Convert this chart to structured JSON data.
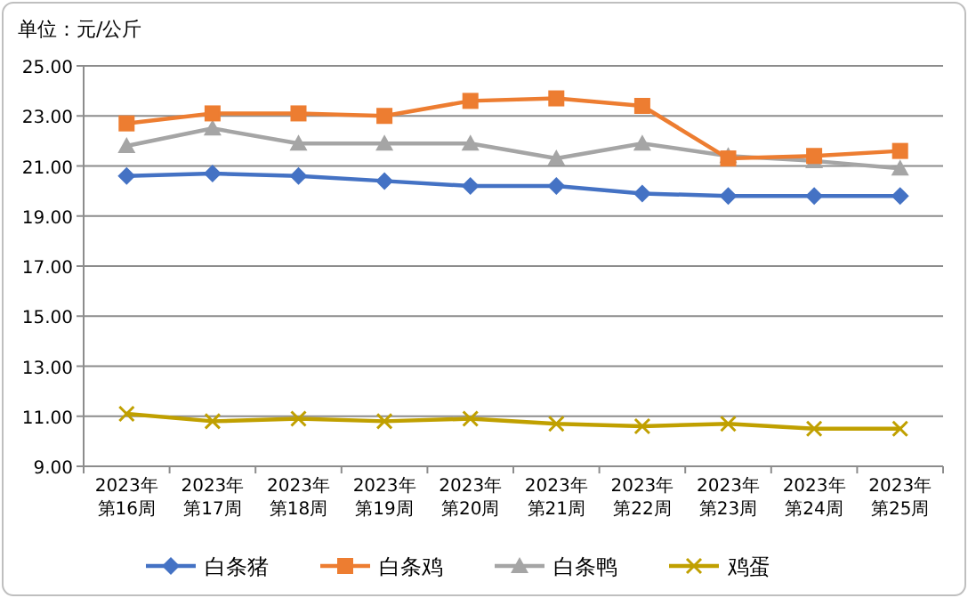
{
  "chart_data": {
    "type": "line",
    "ylabel": "单位：元/公斤",
    "categories": [
      "2023年第16周",
      "2023年第17周",
      "2023年第18周",
      "2023年第19周",
      "2023年第20周",
      "2023年第21周",
      "2023年第22周",
      "2023年第23周",
      "2023年第24周",
      "2023年第25周"
    ],
    "series": [
      {
        "name": "白条猪",
        "color": "#4472c4",
        "marker": "diamond",
        "values": [
          20.6,
          20.7,
          20.6,
          20.4,
          20.2,
          20.2,
          19.9,
          19.8,
          19.8,
          19.8
        ]
      },
      {
        "name": "白条鸡",
        "color": "#ed7d31",
        "marker": "square",
        "values": [
          22.7,
          23.1,
          23.1,
          23.0,
          23.6,
          23.7,
          23.4,
          21.3,
          21.4,
          21.6
        ]
      },
      {
        "name": "白条鸭",
        "color": "#a5a5a5",
        "marker": "triangle",
        "values": [
          21.8,
          22.5,
          21.9,
          21.9,
          21.9,
          21.3,
          21.9,
          21.4,
          21.2,
          20.9
        ]
      },
      {
        "name": "鸡蛋",
        "color": "#c0a000",
        "marker": "cross",
        "values": [
          11.1,
          10.8,
          10.9,
          10.8,
          10.9,
          10.7,
          10.6,
          10.7,
          10.5,
          10.5
        ]
      }
    ],
    "ylim": [
      9,
      25
    ],
    "yticks": [
      {
        "value": 9,
        "label": "9.00"
      },
      {
        "value": 11,
        "label": "11.00"
      },
      {
        "value": 13,
        "label": "13.00"
      },
      {
        "value": 15,
        "label": "15.00"
      },
      {
        "value": 17,
        "label": "17.00"
      },
      {
        "value": 19,
        "label": "19.00"
      },
      {
        "value": 21,
        "label": "21.00"
      },
      {
        "value": 23,
        "label": "23.00"
      },
      {
        "value": 25,
        "label": "25.00"
      }
    ],
    "grid": "y",
    "legend": "bottom",
    "line_style": "solid"
  }
}
